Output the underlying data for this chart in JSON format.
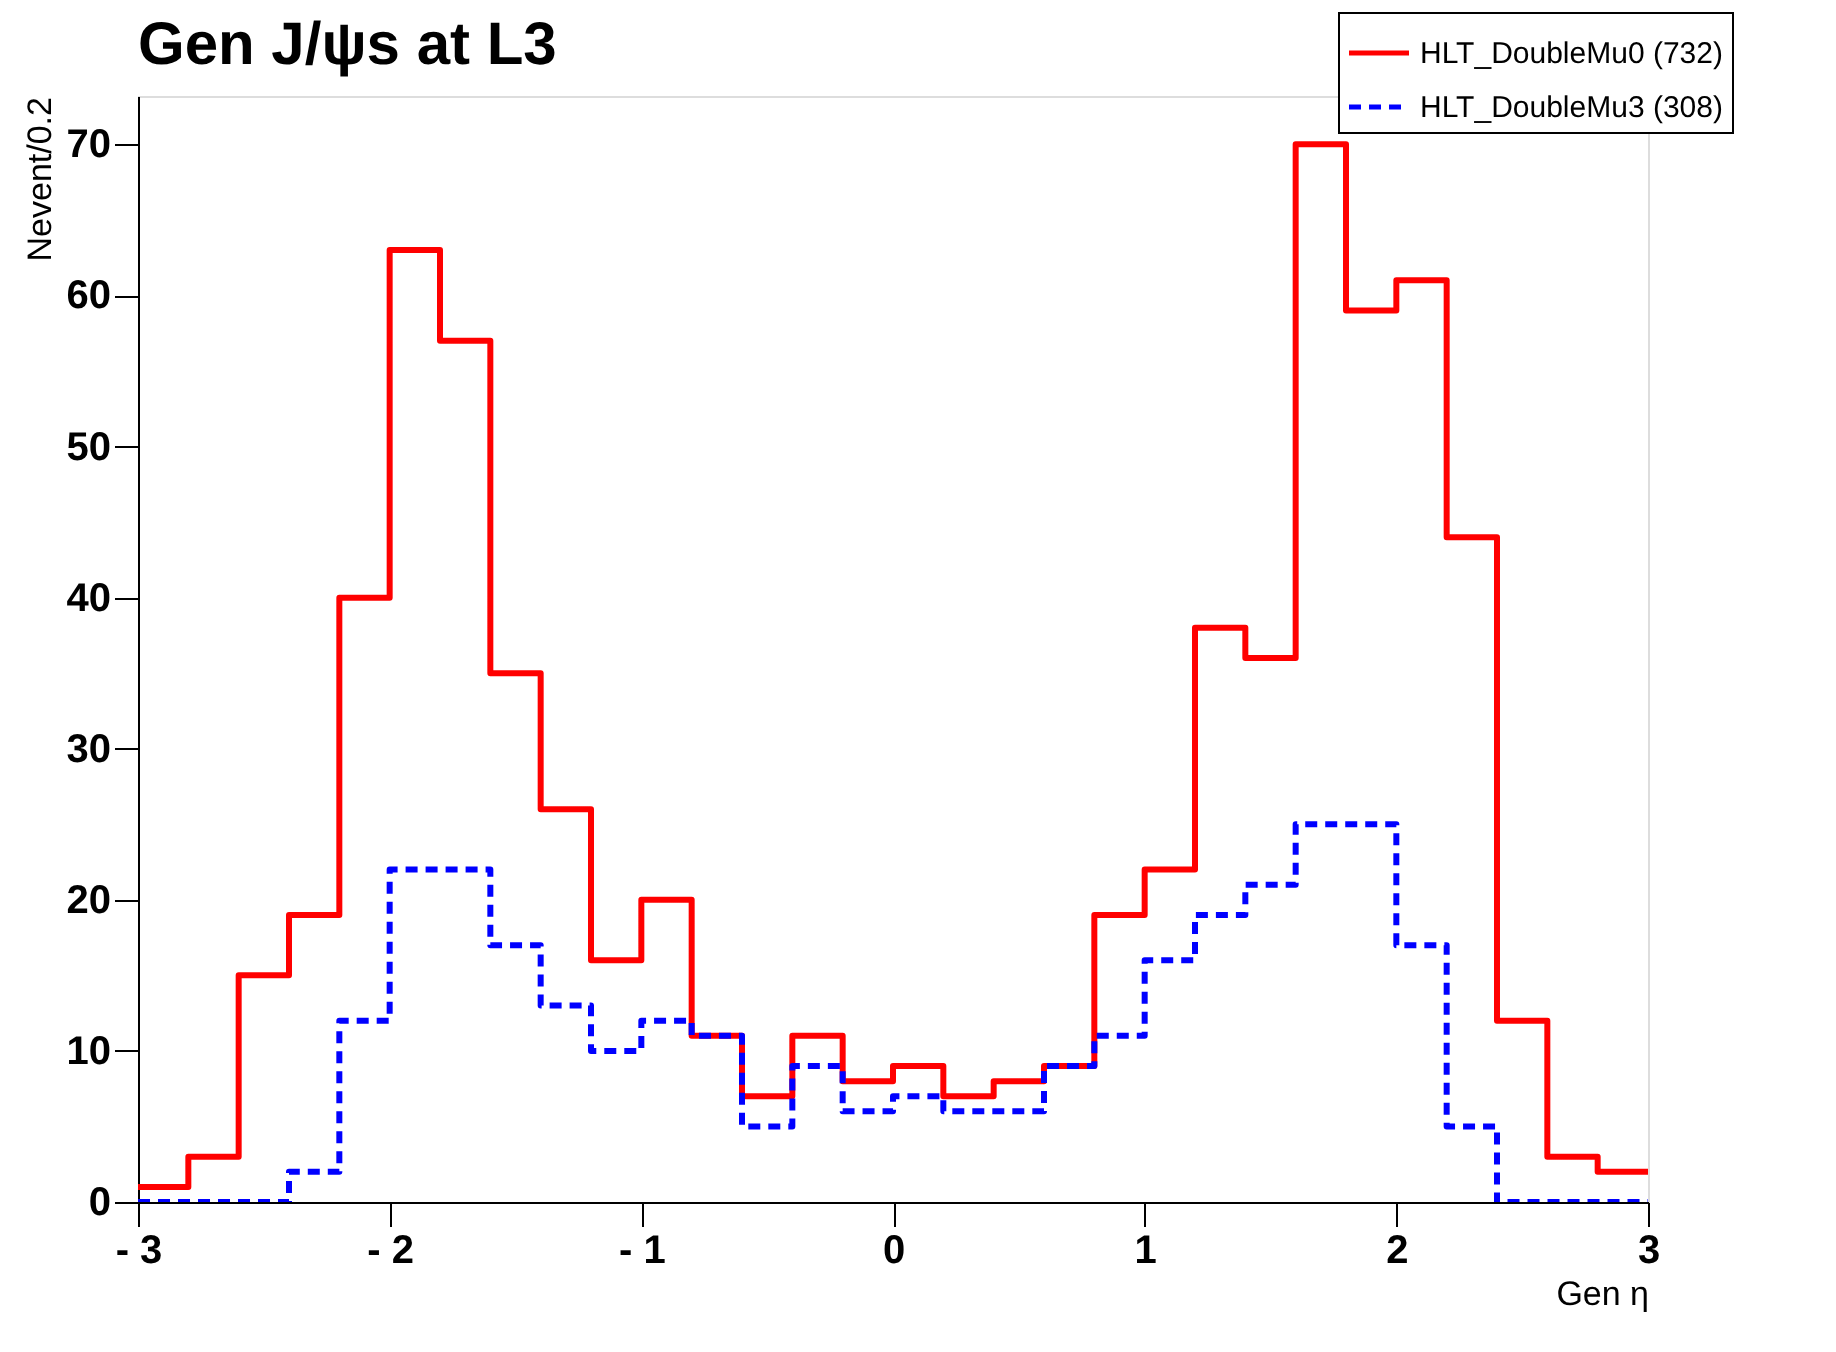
{
  "chart_data": {
    "type": "histogram",
    "title": "Gen J/ψs at L3",
    "xlabel": "Gen η",
    "ylabel": "Nevent/0.2",
    "bins": [
      -3,
      -2.8,
      -2.6,
      -2.4,
      -2.2,
      -2,
      -1.8,
      -1.6,
      -1.4,
      -1.2,
      -1,
      -0.8,
      -0.6,
      -0.4,
      -0.2,
      0,
      0.2,
      0.4,
      0.6,
      0.8,
      1,
      1.2,
      1.4,
      1.6,
      1.8,
      2,
      2.2,
      2.4,
      2.6,
      2.8,
      3
    ],
    "series": [
      {
        "name": "HLT_DoubleMu0 (732)",
        "color": "#ff0000",
        "line_style": "solid",
        "values": [
          1,
          3,
          15,
          19,
          40,
          63,
          57,
          35,
          26,
          16,
          20,
          11,
          7,
          11,
          8,
          9,
          7,
          8,
          9,
          19,
          22,
          38,
          36,
          70,
          59,
          61,
          44,
          12,
          3,
          2
        ]
      },
      {
        "name": "HLT_DoubleMu3 (308)",
        "color": "#0000ff",
        "line_style": "dashed",
        "values": [
          0,
          0,
          0,
          2,
          12,
          22,
          22,
          17,
          13,
          10,
          12,
          11,
          5,
          9,
          6,
          7,
          6,
          6,
          9,
          11,
          16,
          19,
          21,
          25,
          25,
          17,
          5,
          0,
          0,
          0
        ]
      }
    ],
    "xlim": [
      -3,
      3
    ],
    "xticks": [
      {
        "value": -3,
        "label": "- 3"
      },
      {
        "value": -2,
        "label": "- 2"
      },
      {
        "value": -1,
        "label": "- 1"
      },
      0,
      1,
      2,
      3
    ],
    "ylim": [
      0,
      73.2
    ],
    "yticks": [
      0,
      10,
      20,
      30,
      40,
      50,
      60,
      70
    ],
    "grid": false,
    "legend": "top right"
  }
}
